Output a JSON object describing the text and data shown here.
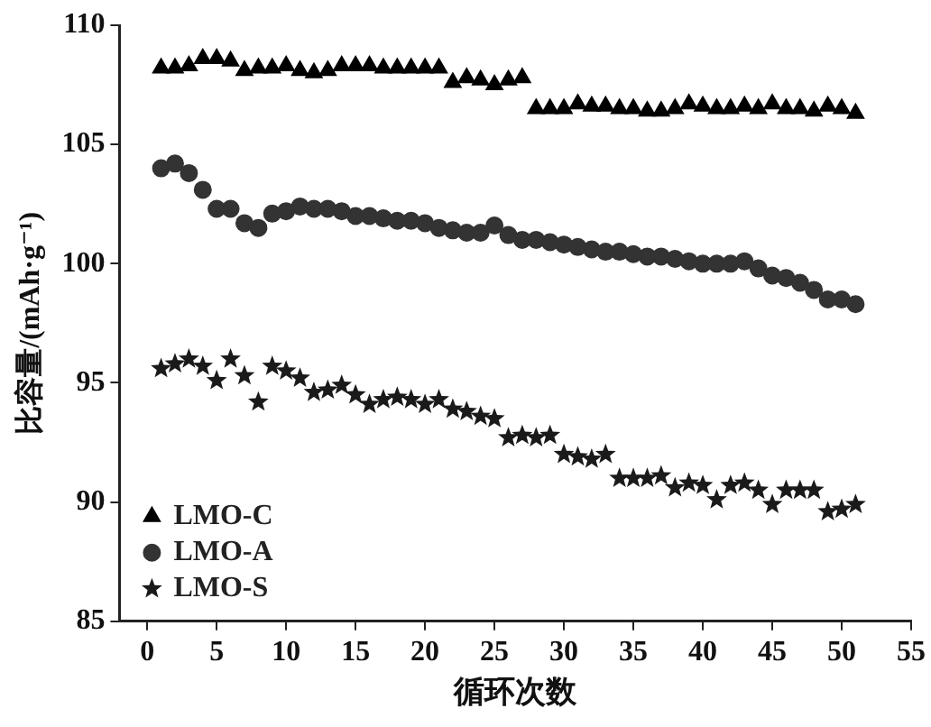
{
  "chart_data": {
    "type": "scatter",
    "xlabel": "循环次数",
    "ylabel": "比容量/(mAh·g⁻¹)",
    "x": [
      1,
      2,
      3,
      4,
      5,
      6,
      7,
      8,
      9,
      10,
      11,
      12,
      13,
      14,
      15,
      16,
      17,
      18,
      19,
      20,
      21,
      22,
      23,
      24,
      25,
      26,
      27,
      28,
      29,
      30,
      31,
      32,
      33,
      34,
      35,
      36,
      37,
      38,
      39,
      40,
      41,
      42,
      43,
      44,
      45,
      46,
      47,
      48,
      49,
      50,
      51
    ],
    "xlim": [
      -2,
      55
    ],
    "xticks": [
      0,
      5,
      10,
      15,
      20,
      25,
      30,
      35,
      40,
      45,
      50,
      55
    ],
    "ylim": [
      85,
      110
    ],
    "yticks": [
      85,
      90,
      95,
      100,
      105,
      110
    ],
    "grid": false,
    "legend": "bottom left",
    "series": [
      {
        "name": "LMO-C",
        "color": "#000000",
        "marker": "triangle",
        "values": [
          108.2,
          108.2,
          108.3,
          108.6,
          108.6,
          108.5,
          108.1,
          108.2,
          108.2,
          108.3,
          108.1,
          108.0,
          108.1,
          108.3,
          108.3,
          108.3,
          108.2,
          108.2,
          108.2,
          108.2,
          108.2,
          107.6,
          107.8,
          107.7,
          107.5,
          107.7,
          107.8,
          106.5,
          106.5,
          106.5,
          106.7,
          106.6,
          106.6,
          106.5,
          106.5,
          106.4,
          106.4,
          106.5,
          106.7,
          106.6,
          106.5,
          106.5,
          106.6,
          106.5,
          106.7,
          106.5,
          106.5,
          106.4,
          106.6,
          106.5,
          106.3
        ]
      },
      {
        "name": "LMO-A",
        "color": "#333333",
        "marker": "circle",
        "values": [
          104.0,
          104.2,
          103.8,
          103.1,
          102.3,
          102.3,
          101.7,
          101.5,
          102.1,
          102.2,
          102.4,
          102.3,
          102.3,
          102.2,
          102.0,
          102.0,
          101.9,
          101.8,
          101.8,
          101.7,
          101.5,
          101.4,
          101.3,
          101.3,
          101.6,
          101.2,
          101.0,
          101.0,
          100.9,
          100.8,
          100.7,
          100.6,
          100.5,
          100.5,
          100.4,
          100.3,
          100.3,
          100.2,
          100.1,
          100.0,
          100.0,
          100.0,
          100.1,
          99.8,
          99.5,
          99.4,
          99.2,
          98.9,
          98.5,
          98.5,
          98.3
        ]
      },
      {
        "name": "LMO-S",
        "color": "#1a1a1a",
        "marker": "star",
        "values": [
          95.6,
          95.8,
          96.0,
          95.7,
          95.1,
          96.0,
          95.3,
          94.2,
          95.7,
          95.5,
          95.2,
          94.6,
          94.7,
          94.9,
          94.5,
          94.1,
          94.3,
          94.4,
          94.3,
          94.1,
          94.3,
          93.9,
          93.8,
          93.6,
          93.5,
          92.7,
          92.8,
          92.7,
          92.8,
          92.0,
          91.9,
          91.8,
          92.0,
          91.0,
          91.0,
          91.0,
          91.1,
          90.6,
          90.8,
          90.7,
          90.1,
          90.7,
          90.8,
          90.5,
          89.9,
          90.5,
          90.5,
          90.5,
          89.6,
          89.7,
          89.9
        ]
      }
    ]
  }
}
